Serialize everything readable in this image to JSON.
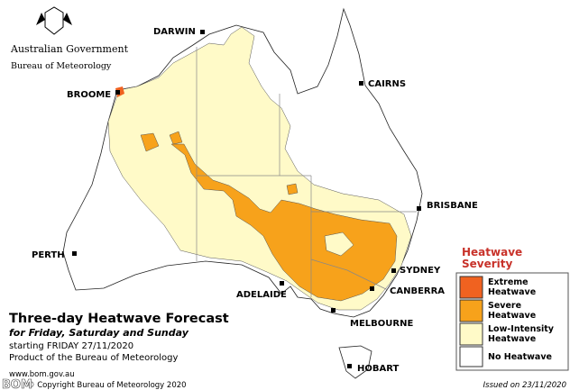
{
  "header": {
    "agency": "Australian Government",
    "bureau": "Bureau of Meteorology"
  },
  "cities": [
    "DARWIN",
    "CAIRNS",
    "BROOME",
    "BRISBANE",
    "PERTH",
    "SYDNEY",
    "CANBERRA",
    "ADELAIDE",
    "MELBOURNE",
    "HOBART"
  ],
  "legend": {
    "title": [
      "Heatwave",
      "Severity"
    ],
    "items": [
      [
        "Extreme",
        "Heatwave"
      ],
      [
        "Severe",
        "Heatwave"
      ],
      [
        "Low-Intensity",
        "Heatwave"
      ],
      [
        "No Heatwave"
      ]
    ]
  },
  "title_block": {
    "title": "Three-day Heatwave Forecast",
    "subtitle": "for Friday, Saturday and Sunday",
    "starting": "starting FRIDAY 27/11/2020",
    "product": "Product of the Bureau of Meteorology"
  },
  "footer": {
    "url": "www.bom.gov.au",
    "copyright": "© Copyright Bureau of Meteorology 2020",
    "issued": "Issued on 23/11/2020",
    "watermark": "BOM"
  }
}
